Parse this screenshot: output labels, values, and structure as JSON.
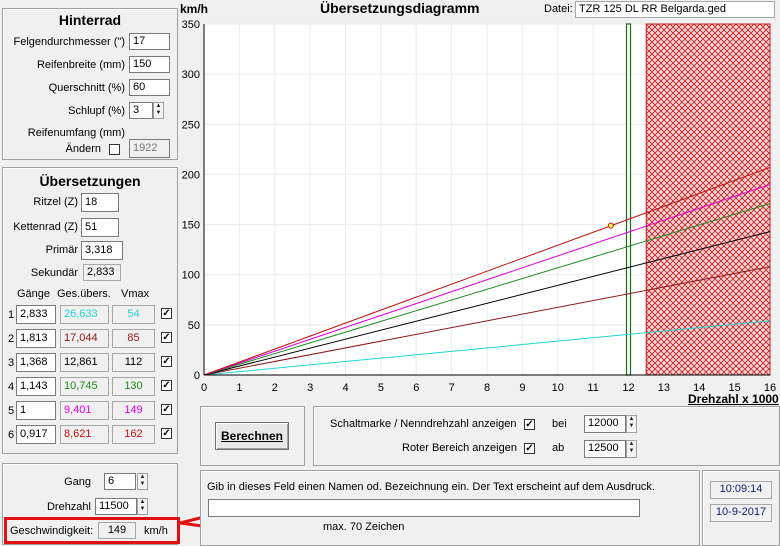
{
  "tire": {
    "title": "Hinterrad",
    "rim_label": "Felgendurchmesser (\")",
    "rim_value": "17",
    "width_label": "Reifenbreite (mm)",
    "width_value": "150",
    "profile_label": "Querschnitt (%)",
    "profile_value": "60",
    "slip_label": "Schlupf (%)",
    "slip_value": "3",
    "circ_label": "Reifenumfang (mm)",
    "change_label": "Ändern",
    "circ_value": "1922"
  },
  "ratios": {
    "title": "Übersetzungen",
    "sprocket_label": "Ritzel (Z)",
    "sprocket_value": "18",
    "chainwheel_label": "Kettenrad (Z)",
    "chainwheel_value": "51",
    "primary_label": "Primär",
    "primary_value": "3,318",
    "secondary_label": "Sekundär",
    "secondary_value": "2,833",
    "col_gears": "Gänge",
    "col_total": "Ges.übers.",
    "col_vmax": "Vmax",
    "gears": [
      {
        "n": "1",
        "ratio": "2,833",
        "total": "26,633",
        "vmax": "54",
        "color": "#22d4d4"
      },
      {
        "n": "2",
        "ratio": "1,813",
        "total": "17,044",
        "vmax": "85",
        "color": "#8b1a1a"
      },
      {
        "n": "3",
        "ratio": "1,368",
        "total": "12,861",
        "vmax": "112",
        "color": "#000000"
      },
      {
        "n": "4",
        "ratio": "1,143",
        "total": "10,745",
        "vmax": "130",
        "color": "#1a8a1a"
      },
      {
        "n": "5",
        "ratio": "1",
        "total": "9,401",
        "vmax": "149",
        "color": "#e000e0"
      },
      {
        "n": "6",
        "ratio": "0,917",
        "total": "8,621",
        "vmax": "162",
        "color": "#c01010"
      }
    ]
  },
  "calc": {
    "gear_label": "Gang",
    "gear_value": "6",
    "rpm_label": "Drehzahl",
    "rpm_value": "11500",
    "speed_label": "Geschwindigkeit:",
    "speed_value": "149",
    "speed_unit": "km/h"
  },
  "header": {
    "y_unit": "km/h",
    "title": "Übersetzungsdiagramm",
    "file_label": "Datei:",
    "file_value": "TZR 125 DL RR Belgarda.ged"
  },
  "chart_data": {
    "type": "line",
    "title": "Übersetzungsdiagramm",
    "xlabel": "Drehzahl x 1000",
    "ylabel": "km/h",
    "xlim": [
      0,
      16
    ],
    "ylim": [
      0,
      350
    ],
    "x_ticks": [
      "0",
      "1",
      "2",
      "3",
      "4",
      "5",
      "6",
      "7",
      "8",
      "9",
      "10",
      "11",
      "12",
      "13",
      "14",
      "15",
      "16"
    ],
    "y_ticks": [
      "0",
      "50",
      "100",
      "150",
      "200",
      "250",
      "300",
      "350"
    ],
    "series": [
      {
        "color": "#22d4d4",
        "x": [
          0,
          16
        ],
        "y": [
          0,
          54
        ]
      },
      {
        "color": "#8b1a1a",
        "x": [
          0,
          16
        ],
        "y": [
          0,
          108
        ]
      },
      {
        "color": "#000000",
        "x": [
          0,
          16
        ],
        "y": [
          0,
          143
        ]
      },
      {
        "color": "#1a8a1a",
        "x": [
          0,
          16
        ],
        "y": [
          0,
          171
        ]
      },
      {
        "color": "#e000e0",
        "x": [
          0,
          16
        ],
        "y": [
          0,
          190
        ]
      },
      {
        "color": "#c01010",
        "x": [
          0,
          16
        ],
        "y": [
          0,
          207
        ]
      }
    ],
    "marker": {
      "x": 11.5,
      "y": 149
    },
    "shift_mark_rpm": 12000,
    "red_zone_from_rpm": 12500,
    "grid": true
  },
  "options": {
    "shift_label": "Schaltmarke / Nenndrehzahl anzeigen",
    "shift_checked": "✓",
    "shift_at": "bei",
    "shift_value": "12000",
    "red_label": "Roter Bereich anzeigen",
    "red_checked": "✓",
    "red_from": "ab",
    "red_value": "12500"
  },
  "buttons": {
    "calculate": "Berechnen"
  },
  "note": {
    "hint": "Gib in dieses Feld einen Namen od. Bezeichnung ein. Der Text erscheint auf dem Ausdruck.",
    "max_hint": "max. 70 Zeichen"
  },
  "status": {
    "time": "10:09:14",
    "date": "10-9-2017"
  },
  "checkmark": "✓"
}
